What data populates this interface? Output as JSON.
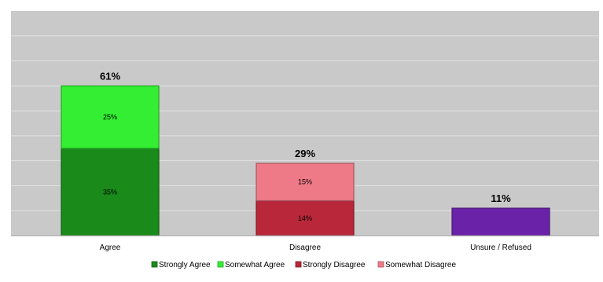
{
  "chart_data": {
    "type": "bar",
    "stacked": true,
    "categories": [
      "Agree",
      "Disagree",
      "Unsure / Refused"
    ],
    "ylim": [
      0,
      90
    ],
    "grid": true,
    "legend_position": "bottom",
    "series": [
      {
        "name": "Strongly Agree",
        "values": [
          35,
          null,
          null
        ],
        "labels": [
          "35%",
          null,
          null
        ],
        "color": "#1a8a1a"
      },
      {
        "name": "Somewhat Agree",
        "values": [
          25,
          null,
          null
        ],
        "labels": [
          "25%",
          null,
          null
        ],
        "color": "#33ee33"
      },
      {
        "name": "Strongly Disagree",
        "values": [
          null,
          14,
          null
        ],
        "labels": [
          null,
          "14%",
          null
        ],
        "color": "#b8273a"
      },
      {
        "name": "Somewhat Disagree",
        "values": [
          null,
          15,
          null
        ],
        "labels": [
          null,
          "15%",
          null
        ],
        "color": "#ee7a88"
      },
      {
        "name": "",
        "values": [
          null,
          null,
          11
        ],
        "labels": [
          null,
          null,
          null
        ],
        "color": "#6a22a8"
      }
    ],
    "totals": [
      "61%",
      "29%",
      "11%"
    ],
    "legend": [
      "Strongly Agree",
      "Somewhat Agree",
      "Strongly Disagree",
      "Somewhat Disagree"
    ]
  }
}
